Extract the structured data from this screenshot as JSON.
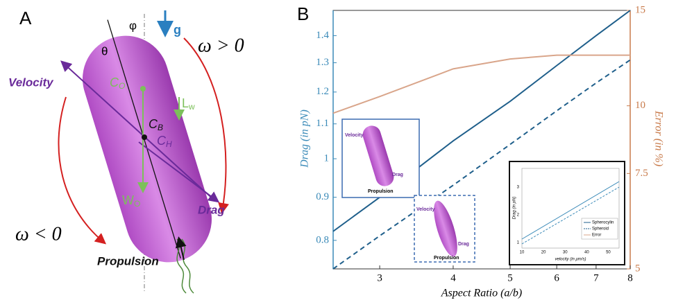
{
  "panel_a": {
    "label": "A",
    "phi": "φ",
    "g": "g",
    "omega_pos": "ω > 0",
    "omega_neg": "ω < 0",
    "theta": "θ",
    "velocity": "Velocity",
    "c_o": [
      "C",
      "O"
    ],
    "l_w": [
      "L",
      "w"
    ],
    "c_b": [
      "C",
      "B"
    ],
    "c_h": [
      "C",
      "H"
    ],
    "w_o": [
      "W",
      "O"
    ],
    "drag": "Drag",
    "propulsion": "Propulsion"
  },
  "insets": {
    "diagram_labels": [
      "Velocity",
      "Drag",
      "Propulsion"
    ],
    "chart": {
      "ylabel": "Drag (in pN)",
      "xlabel": "velocity (in μm/s)",
      "xticks": [
        10,
        20,
        30,
        40,
        50
      ],
      "yticks": [
        1,
        2,
        3
      ]
    }
  },
  "chart_data": {
    "type": "line",
    "label": "B",
    "xlabel": "Aspect Ratio (a/b)",
    "ylabel": "Drag (in pN)",
    "y2label": "Error (in %)",
    "x": [
      2.5,
      3,
      4,
      5,
      6,
      7,
      8
    ],
    "series": [
      {
        "name": "Spherocylin",
        "color": "#1f5f8b",
        "linestyle": "solid",
        "values": [
          0.82,
          0.9,
          1.05,
          1.17,
          1.29,
          1.4,
          1.5
        ]
      },
      {
        "name": "Spheroid",
        "color": "#1f5f8b",
        "linestyle": "dashed",
        "values": [
          0.74,
          0.81,
          0.93,
          1.04,
          1.14,
          1.23,
          1.31
        ]
      },
      {
        "name": "Error",
        "color": "#d9a58a",
        "linestyle": "solid",
        "axis": "y2",
        "values": [
          9.69,
          10.4,
          11.7,
          12.2,
          12.4,
          12.4,
          12.4
        ]
      }
    ],
    "xlim": [
      2.5,
      8
    ],
    "xticks": [
      3,
      4,
      5,
      6,
      7,
      8
    ],
    "log_x": true,
    "ylim": [
      0.74,
      1.5
    ],
    "yticks": [
      0.8,
      0.9,
      1,
      1.1,
      1.2,
      1.3,
      1.4
    ],
    "log_y": true,
    "y2lim": [
      5,
      15
    ],
    "y2ticks": [
      5,
      7.5,
      10,
      15
    ],
    "log_y2": true,
    "y_color": "#3a8ab8",
    "y2_color": "#c87a4a"
  }
}
